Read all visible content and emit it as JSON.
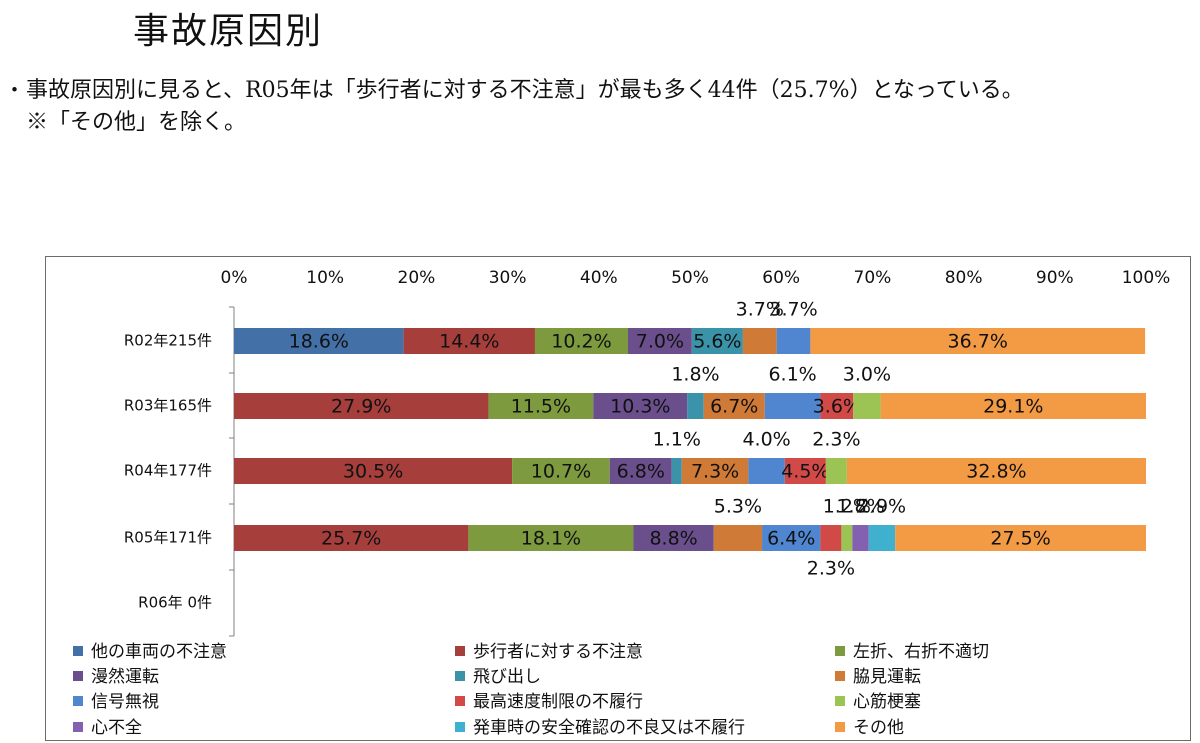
{
  "page": {
    "title": "事故原因別",
    "bullet": "・",
    "lead": "事故原因別に見ると、R05年は「歩行者に対する不注意」が最も多く44件（25.7%）となっている。",
    "note": "※「その他」を除く。"
  },
  "chart_data": {
    "type": "bar",
    "orientation": "horizontal",
    "stacked": "percent",
    "categories": [
      "R02年215件",
      "R03年165件",
      "R04年177件",
      "R05年171件",
      "R06年  0件"
    ],
    "x_ticks": [
      "0%",
      "10%",
      "20%",
      "30%",
      "40%",
      "50%",
      "60%",
      "70%",
      "80%",
      "90%",
      "100%"
    ],
    "xlim": [
      0,
      100
    ],
    "legend_position": "bottom",
    "series": [
      {
        "name": "他の車両の不注意",
        "color": "#4470a8",
        "values": [
          18.6,
          0,
          0,
          0,
          0
        ],
        "labels": [
          "18.6%",
          "",
          "",
          "",
          ""
        ]
      },
      {
        "name": "歩行者に対する不注意",
        "color": "#a63f3c",
        "values": [
          14.4,
          27.9,
          30.5,
          25.7,
          0
        ],
        "labels": [
          "14.4%",
          "27.9%",
          "30.5%",
          "25.7%",
          ""
        ]
      },
      {
        "name": "左折、右折不適切",
        "color": "#7d9a3e",
        "values": [
          10.2,
          11.5,
          10.7,
          18.1,
          0
        ],
        "labels": [
          "10.2%",
          "11.5%",
          "10.7%",
          "18.1%",
          ""
        ]
      },
      {
        "name": "漫然運転",
        "color": "#6a4f8c",
        "values": [
          7.0,
          10.3,
          6.8,
          8.8,
          0
        ],
        "labels": [
          "7.0%",
          "10.3%",
          "6.8%",
          "8.8%",
          ""
        ]
      },
      {
        "name": "飛び出し",
        "color": "#3a93a8",
        "values": [
          5.6,
          1.8,
          1.1,
          0,
          0
        ],
        "labels": [
          "5.6%",
          "1.8%",
          "1.1%",
          "",
          ""
        ]
      },
      {
        "name": "脇見運転",
        "color": "#d07a38",
        "values": [
          3.7,
          6.7,
          7.3,
          5.3,
          0
        ],
        "labels": [
          "3.7%",
          "6.7%",
          "7.3%",
          "5.3%",
          ""
        ]
      },
      {
        "name": "信号無視",
        "color": "#4f86cf",
        "values": [
          3.7,
          6.1,
          4.0,
          6.4,
          0
        ],
        "labels": [
          "3.7%",
          "6.1%",
          "4.0%",
          "6.4%",
          ""
        ]
      },
      {
        "name": "最高速度制限の不履行",
        "color": "#d24a48",
        "values": [
          0,
          3.6,
          4.5,
          2.3,
          0
        ],
        "labels": [
          "",
          "3.6%",
          "4.5%",
          "2.3%",
          ""
        ]
      },
      {
        "name": "心筋梗塞",
        "color": "#9cc454",
        "values": [
          0,
          3.0,
          2.3,
          1.2,
          0
        ],
        "labels": [
          "",
          "3.0%",
          "2.3%",
          "1.2%",
          ""
        ]
      },
      {
        "name": "心不全",
        "color": "#8461b0",
        "values": [
          0,
          0,
          0,
          1.8,
          0
        ],
        "labels": [
          "",
          "",
          "",
          "1.8%",
          ""
        ]
      },
      {
        "name": "発車時の安全確認の不良又は不履行",
        "color": "#3fb1cf",
        "values": [
          0,
          0,
          0,
          2.9,
          0
        ],
        "labels": [
          "",
          "",
          "",
          "2.9%",
          ""
        ]
      },
      {
        "name": "その他",
        "color": "#f39a45",
        "values": [
          36.7,
          29.1,
          32.8,
          27.5,
          0
        ],
        "labels": [
          "36.7%",
          "29.1%",
          "32.8%",
          "27.5%",
          ""
        ]
      }
    ]
  }
}
